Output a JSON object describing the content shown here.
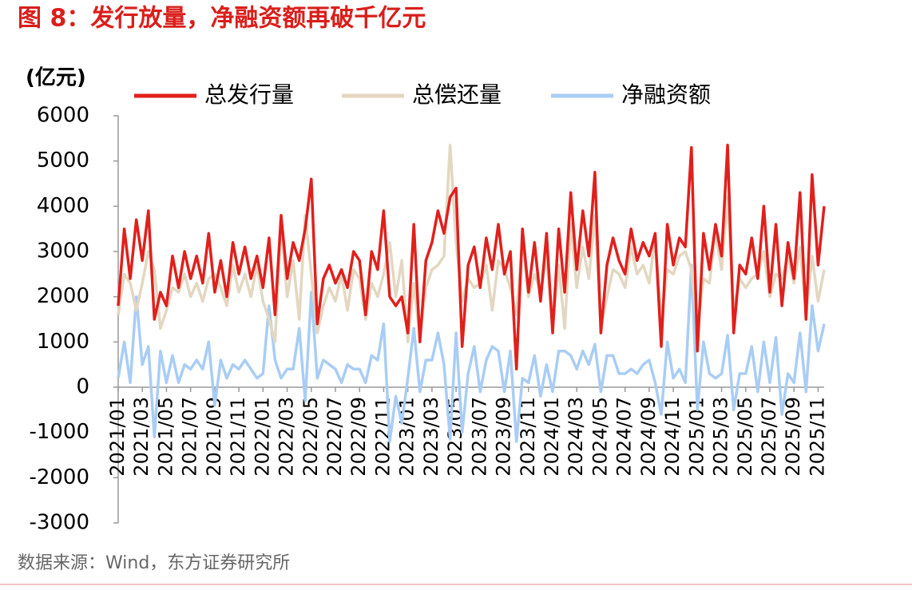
{
  "title": "图 8：发行放量，净融资额再破千亿元",
  "source": "数据来源：Wind，东方证券研究所",
  "chart_data": {
    "type": "line",
    "y_label": "(亿元)",
    "categories": [
      "2021/01",
      null,
      null,
      null,
      "2021/03",
      null,
      null,
      null,
      "2021/05",
      null,
      null,
      null,
      "2021/07",
      null,
      null,
      null,
      "2021/09",
      null,
      null,
      null,
      "2021/11",
      null,
      null,
      null,
      "2022/01",
      null,
      null,
      null,
      "2022/03",
      null,
      null,
      null,
      "2022/05",
      null,
      null,
      null,
      "2022/07",
      null,
      null,
      null,
      "2022/09",
      null,
      null,
      null,
      "2022/11",
      null,
      null,
      null,
      "2023/01",
      null,
      null,
      null,
      "2023/03",
      null,
      null,
      null,
      "2023/05",
      null,
      null,
      null,
      "2023/07",
      null,
      null,
      null,
      "2023/09",
      null,
      null,
      null,
      "2023/11",
      null,
      null,
      null,
      "2024/01",
      null,
      null,
      null,
      "2024/03",
      null,
      null,
      null,
      "2024/05",
      null,
      null,
      null,
      "2024/07",
      null,
      null,
      null,
      "2024/09",
      null,
      null,
      null,
      "2024/11",
      null,
      null,
      null,
      "2025/01",
      null,
      null,
      null,
      "2025/03",
      null,
      null,
      null,
      "2025/05",
      null,
      null,
      null,
      "2025/07",
      null,
      null,
      null,
      "2025/09",
      null,
      null,
      null,
      "2025/11",
      null
    ],
    "series": [
      {
        "name": "总发行量",
        "color": "#e0201c",
        "values": [
          1800,
          3500,
          2400,
          3700,
          2800,
          3900,
          1500,
          2100,
          1800,
          2900,
          2200,
          3000,
          2400,
          2900,
          2300,
          3400,
          2100,
          2800,
          2000,
          3200,
          2500,
          3100,
          2400,
          2900,
          2200,
          3300,
          1600,
          3800,
          2400,
          3200,
          2800,
          3500,
          4600,
          1400,
          2400,
          2700,
          2300,
          2600,
          2200,
          3000,
          2800,
          1600,
          3000,
          2600,
          3900,
          2000,
          1800,
          2000,
          1200,
          3600,
          1000,
          2800,
          3200,
          3900,
          3400,
          4200,
          4400,
          900,
          2700,
          3100,
          2200,
          3300,
          2600,
          3600,
          2500,
          3000,
          400,
          3500,
          2100,
          3200,
          1900,
          3400,
          1200,
          3500,
          2100,
          4300,
          2600,
          3900,
          2900,
          4750,
          1200,
          2700,
          3300,
          2800,
          2500,
          3500,
          2800,
          3200,
          2900,
          3400,
          900,
          3600,
          2700,
          3300,
          3100,
          5300,
          800,
          3400,
          2600,
          3600,
          2900,
          5350,
          1200,
          2700,
          2500,
          3300,
          2400,
          4000,
          2100,
          3600,
          1800,
          3200,
          2400,
          4300,
          1500,
          4700,
          2700,
          4000
        ]
      },
      {
        "name": "总偿还量",
        "color": "#e3d7c1",
        "values": [
          1600,
          2500,
          2300,
          1700,
          2300,
          3000,
          2600,
          1300,
          1700,
          2200,
          2100,
          2500,
          2000,
          2300,
          1900,
          2400,
          2500,
          2200,
          1800,
          2700,
          2100,
          2500,
          2000,
          2700,
          1900,
          1500,
          1000,
          3600,
          2000,
          2800,
          1500,
          3800,
          2500,
          1200,
          1800,
          2200,
          1900,
          2500,
          1700,
          2600,
          2400,
          1500,
          2300,
          2000,
          2500,
          3200,
          2000,
          2800,
          1000,
          2300,
          1100,
          2200,
          2600,
          2700,
          2900,
          5350,
          3200,
          1900,
          2400,
          2200,
          2300,
          2700,
          1700,
          2800,
          2600,
          2200,
          1600,
          3300,
          2000,
          2500,
          2100,
          2900,
          1300,
          2700,
          1300,
          3600,
          2200,
          3100,
          2400,
          3800,
          1300,
          2000,
          2600,
          2500,
          2200,
          3100,
          2500,
          2700,
          2300,
          3300,
          1500,
          2600,
          2500,
          2900,
          3000,
          2600,
          1300,
          2400,
          2300,
          3400,
          2600,
          4200,
          1700,
          2400,
          2200,
          2400,
          2500,
          3000,
          2000,
          2500,
          2400,
          2900,
          2300,
          3100,
          1600,
          2900,
          1900,
          2600
        ]
      },
      {
        "name": "净融资额",
        "color": "#a9cdf4",
        "values": [
          200,
          1000,
          100,
          2000,
          500,
          900,
          -1100,
          800,
          100,
          700,
          100,
          500,
          400,
          600,
          400,
          1000,
          -400,
          600,
          200,
          500,
          400,
          600,
          400,
          200,
          300,
          1800,
          600,
          200,
          400,
          400,
          1300,
          -300,
          2100,
          200,
          600,
          500,
          400,
          100,
          500,
          400,
          400,
          100,
          700,
          600,
          1400,
          -1200,
          -200,
          -800,
          200,
          1300,
          -100,
          600,
          600,
          1200,
          500,
          -1150,
          1200,
          -1000,
          300,
          900,
          -100,
          600,
          900,
          800,
          -100,
          800,
          -1200,
          200,
          100,
          700,
          -200,
          500,
          -100,
          800,
          800,
          700,
          400,
          800,
          500,
          950,
          -100,
          700,
          700,
          300,
          300,
          400,
          300,
          500,
          600,
          100,
          -600,
          1000,
          200,
          400,
          100,
          2700,
          -500,
          1000,
          300,
          200,
          300,
          1150,
          -500,
          300,
          300,
          900,
          -100,
          1000,
          100,
          1100,
          -600,
          300,
          100,
          1200,
          -100,
          1800,
          800,
          1400
        ]
      }
    ],
    "ylim": [
      -3000,
      6000
    ],
    "yticks": [
      -3000,
      -2000,
      -1000,
      0,
      1000,
      2000,
      3000,
      4000,
      5000,
      6000
    ]
  }
}
